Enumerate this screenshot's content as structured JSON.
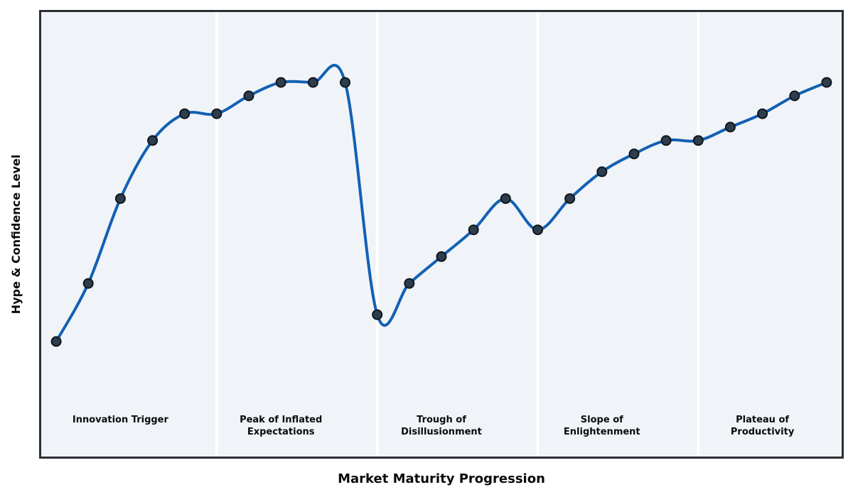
{
  "chart_data": {
    "type": "line",
    "xlabel": "Market Maturity Progression",
    "ylabel": "Hype & Confidence Level",
    "x": [
      0,
      1,
      2,
      3,
      4,
      5,
      6,
      7,
      8,
      9,
      10,
      11,
      12,
      13,
      14,
      15,
      16,
      17,
      18,
      19,
      20,
      21,
      22,
      23,
      24
    ],
    "values": [
      26,
      39,
      58,
      71,
      77,
      77,
      81,
      84,
      84,
      84,
      32,
      39,
      45,
      51,
      58,
      51,
      58,
      64,
      68,
      71,
      71,
      74,
      77,
      81,
      84
    ],
    "xlim": [
      -0.5,
      24.5
    ],
    "ylim": [
      0,
      100
    ],
    "grid": false,
    "legend": null,
    "line_smoothing": "spline",
    "marker": "circle",
    "separators_x": [
      5,
      10,
      15,
      20
    ],
    "phases": [
      {
        "name": "Innovation Trigger",
        "label_x": 2,
        "label_lines": [
          "Innovation Trigger"
        ]
      },
      {
        "name": "Peak of Inflated Expectations",
        "label_x": 7,
        "label_lines": [
          "Peak of Inflated",
          "Expectations"
        ]
      },
      {
        "name": "Trough of Disillusionment",
        "label_x": 12,
        "label_lines": [
          "Trough of",
          "Disillusionment"
        ]
      },
      {
        "name": "Slope of Enlightenment",
        "label_x": 17,
        "label_lines": [
          "Slope of",
          "Enlightenment"
        ]
      },
      {
        "name": "Plateau of Productivity",
        "label_x": 22,
        "label_lines": [
          "Plateau of",
          "Productivity"
        ]
      }
    ]
  },
  "colors": {
    "line": "#1360b4",
    "marker_fill": "#2e3d4d",
    "marker_edge": "#10151b",
    "plot_bg": "#f0f4f8",
    "figure_bg": "#ffffff",
    "spine": "#2b2e33",
    "separator": "#ffffff",
    "text": "#0a0a0a"
  }
}
